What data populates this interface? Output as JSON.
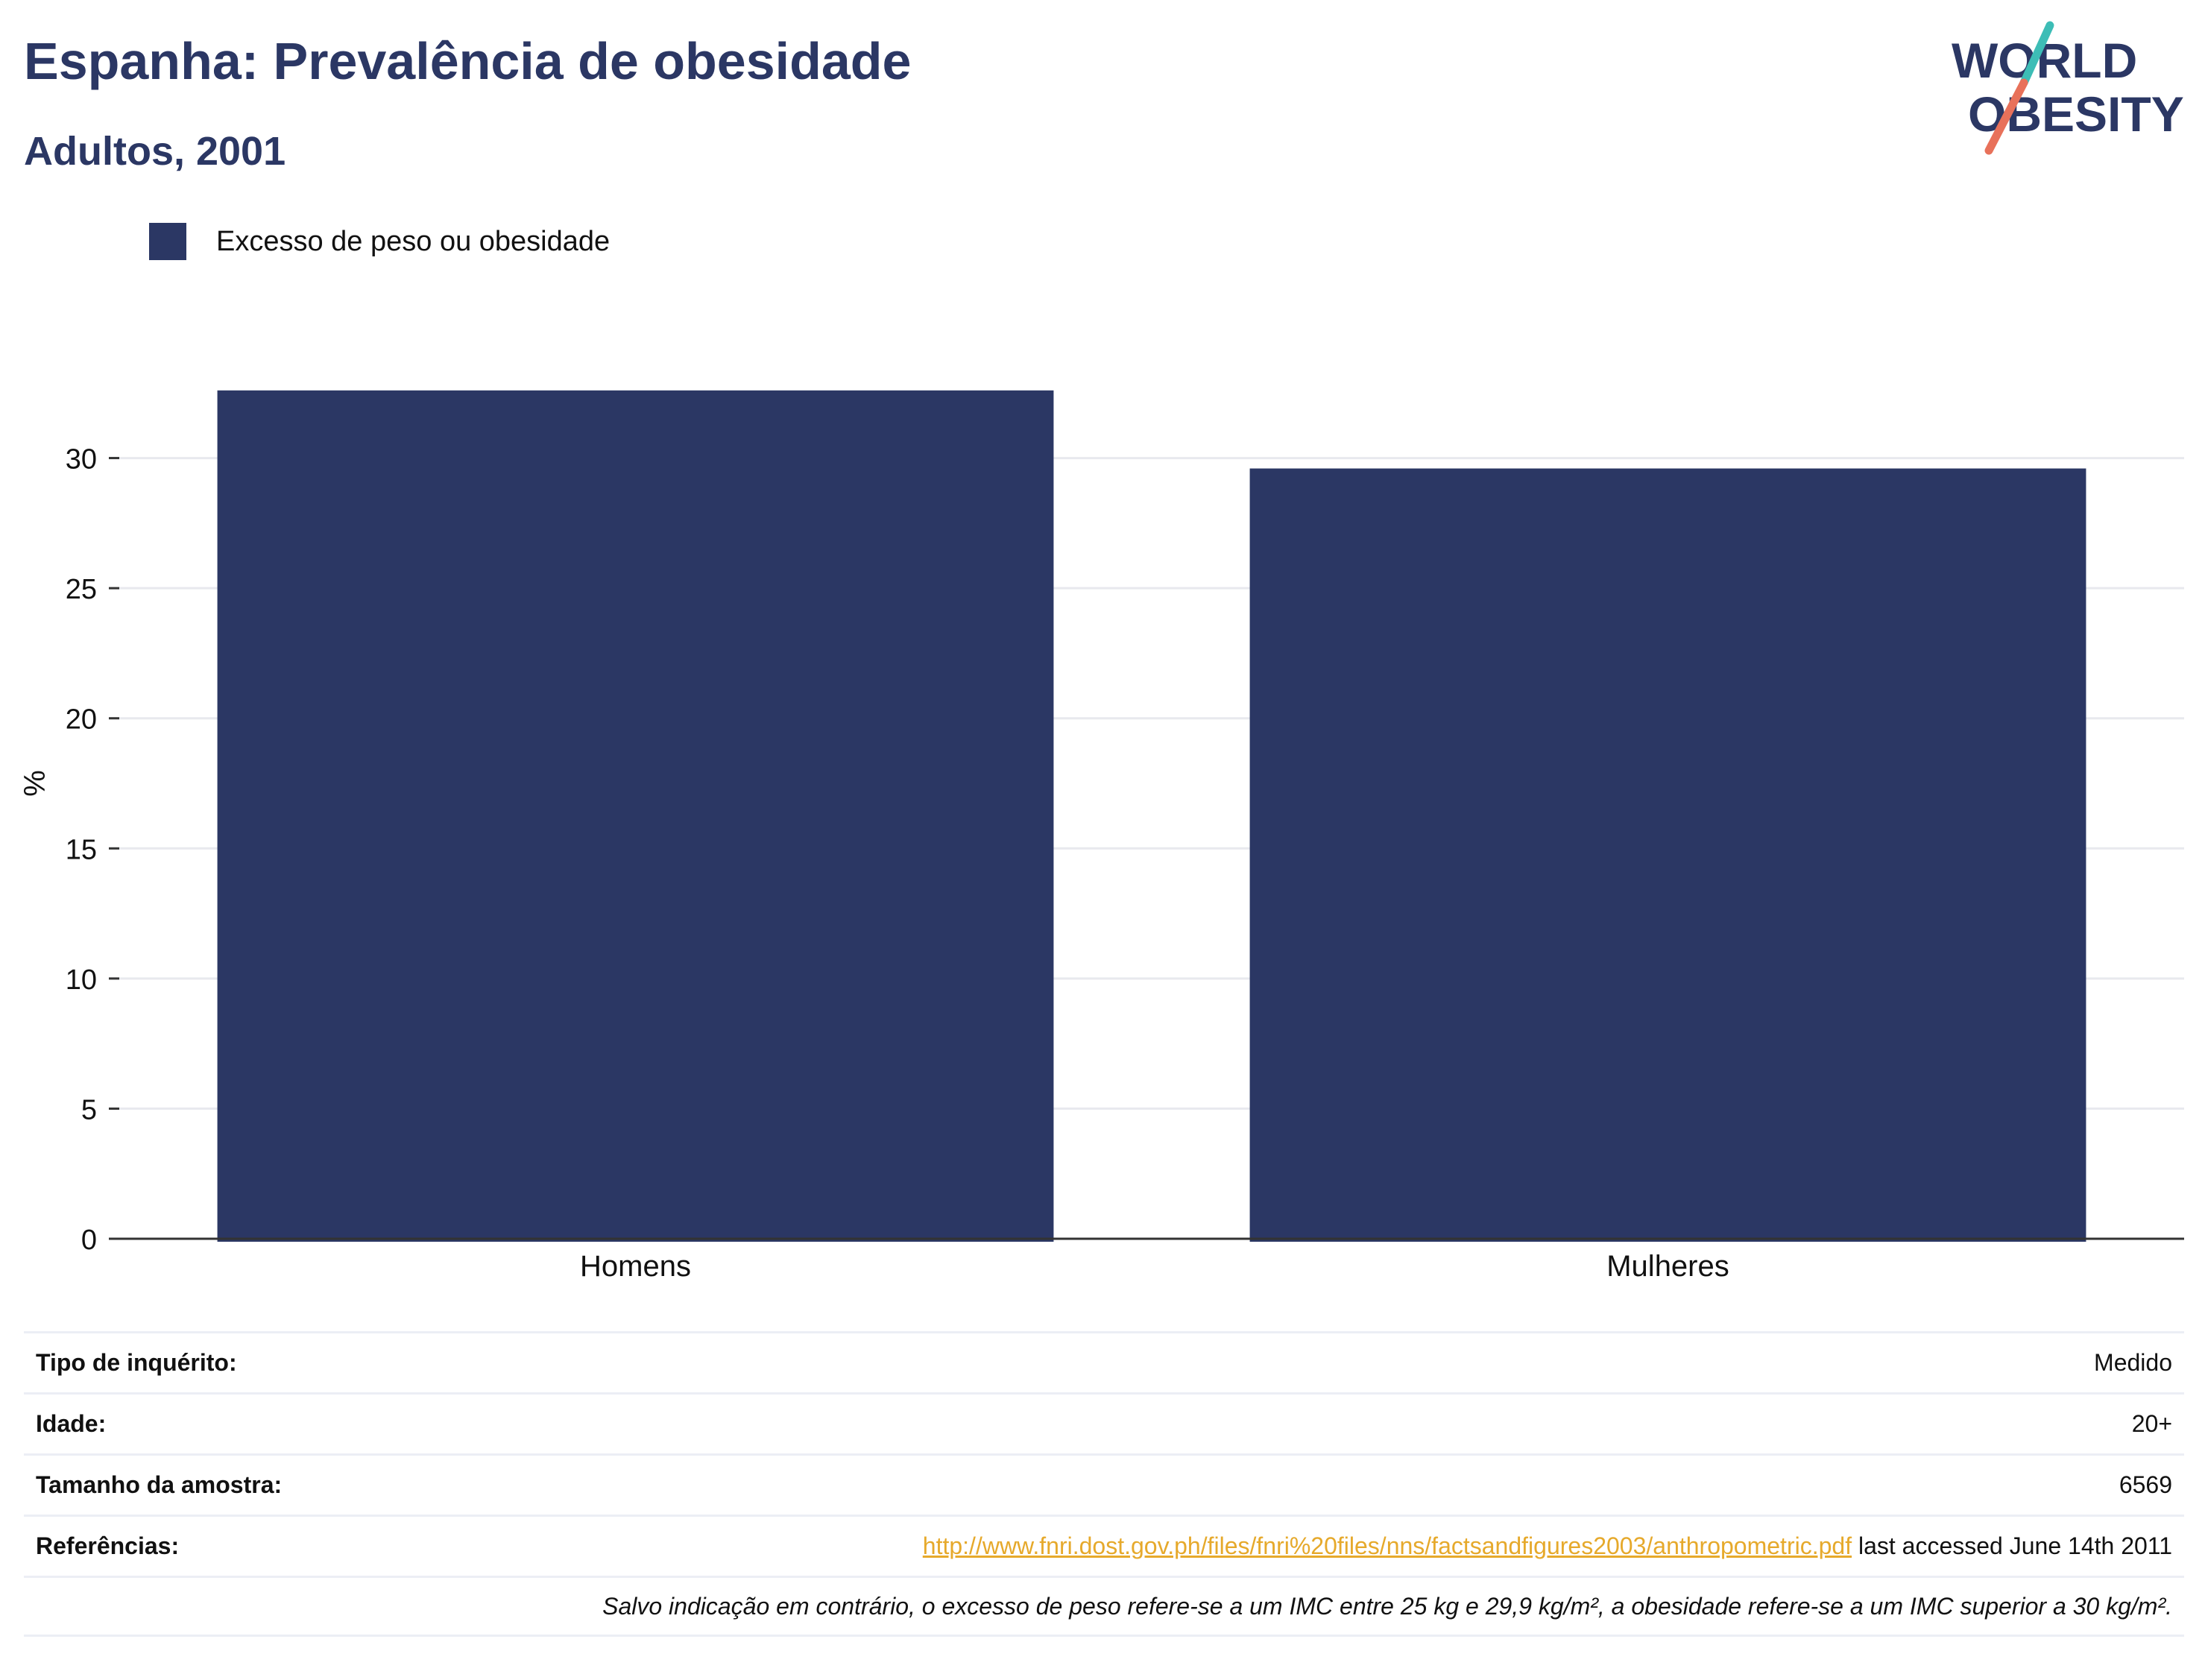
{
  "header": {
    "title": "Espanha: Prevalência de obesidade",
    "subtitle": "Adultos, 2001",
    "logo_line1": "WORLD",
    "logo_line2": "OBESITY"
  },
  "legend": {
    "label": "Excesso de peso ou obesidade",
    "color": "#2b3764"
  },
  "chart_data": {
    "type": "bar",
    "categories": [
      "Homens",
      "Mulheres"
    ],
    "series": [
      {
        "name": "Excesso de peso ou obesidade",
        "values": [
          32.6,
          29.6
        ],
        "color": "#2b3764"
      }
    ],
    "ylabel": "%",
    "xlabel": "",
    "ylim": [
      0,
      35
    ],
    "yticks": [
      0,
      5,
      10,
      15,
      20,
      25,
      30
    ],
    "grid": true,
    "legend_position": "top-left"
  },
  "info": {
    "survey_type_label": "Tipo de inquérito:",
    "survey_type_value": "Medido",
    "age_label": "Idade:",
    "age_value": "20+",
    "sample_label": "Tamanho da amostra:",
    "sample_value": "6569",
    "refs_label": "Referências:",
    "refs_link": "http://www.fnri.dost.gov.ph/files/fnri%20files/nns/factsandfigures2003/anthropometric.pdf",
    "refs_suffix": " last accessed June 14th 2011",
    "note": "Salvo indicação em contrário, o excesso de peso refere-se a um IMC entre 25 kg e 29,9 kg/m², a obesidade refere-se a um IMC superior a 30 kg/m²."
  },
  "colors": {
    "brand_navy": "#2b3764",
    "link_orange": "#e6a92b",
    "logo_teal": "#3dbdb6",
    "logo_coral": "#e8715a"
  }
}
